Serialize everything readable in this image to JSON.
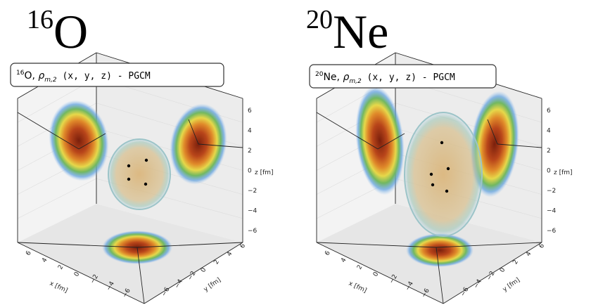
{
  "panels": [
    {
      "title": {
        "mass": "16",
        "element": "O"
      },
      "box_label": {
        "mass": "16",
        "element": "O",
        "sep": ", ",
        "symbol": "ρ",
        "subscript": "m,2",
        "args": " (x, y, z) - PGCM"
      },
      "z_label": "z [fm]",
      "z_ticks": [
        "6",
        "4",
        "2",
        "0",
        "−2",
        "−4",
        "−6"
      ],
      "x_label": "x [fm]",
      "x_ticks": [
        "6",
        "4",
        "2",
        "0",
        "−2",
        "−4",
        "−6"
      ],
      "y_label": "y [fm]",
      "y_ticks": [
        "−6",
        "−4",
        "−2",
        "0",
        "2",
        "4",
        "6"
      ]
    },
    {
      "title": {
        "mass": "20",
        "element": "Ne"
      },
      "box_label": {
        "mass": "20",
        "element": "Ne",
        "sep": ", ",
        "symbol": "ρ",
        "subscript": "m,2",
        "args": " (x, y, z) - PGCM"
      },
      "z_label": "z [fm]",
      "z_ticks": [
        "6",
        "4",
        "2",
        "0",
        "−2",
        "−4",
        "−6"
      ],
      "x_label": "x [fm]",
      "x_ticks": [
        "6",
        "4",
        "2",
        "0",
        "−2",
        "−4",
        "−6"
      ],
      "y_label": "y [fm]",
      "y_ticks": [
        "−6",
        "−4",
        "−2",
        "0",
        "2",
        "4",
        "6"
      ]
    }
  ]
}
